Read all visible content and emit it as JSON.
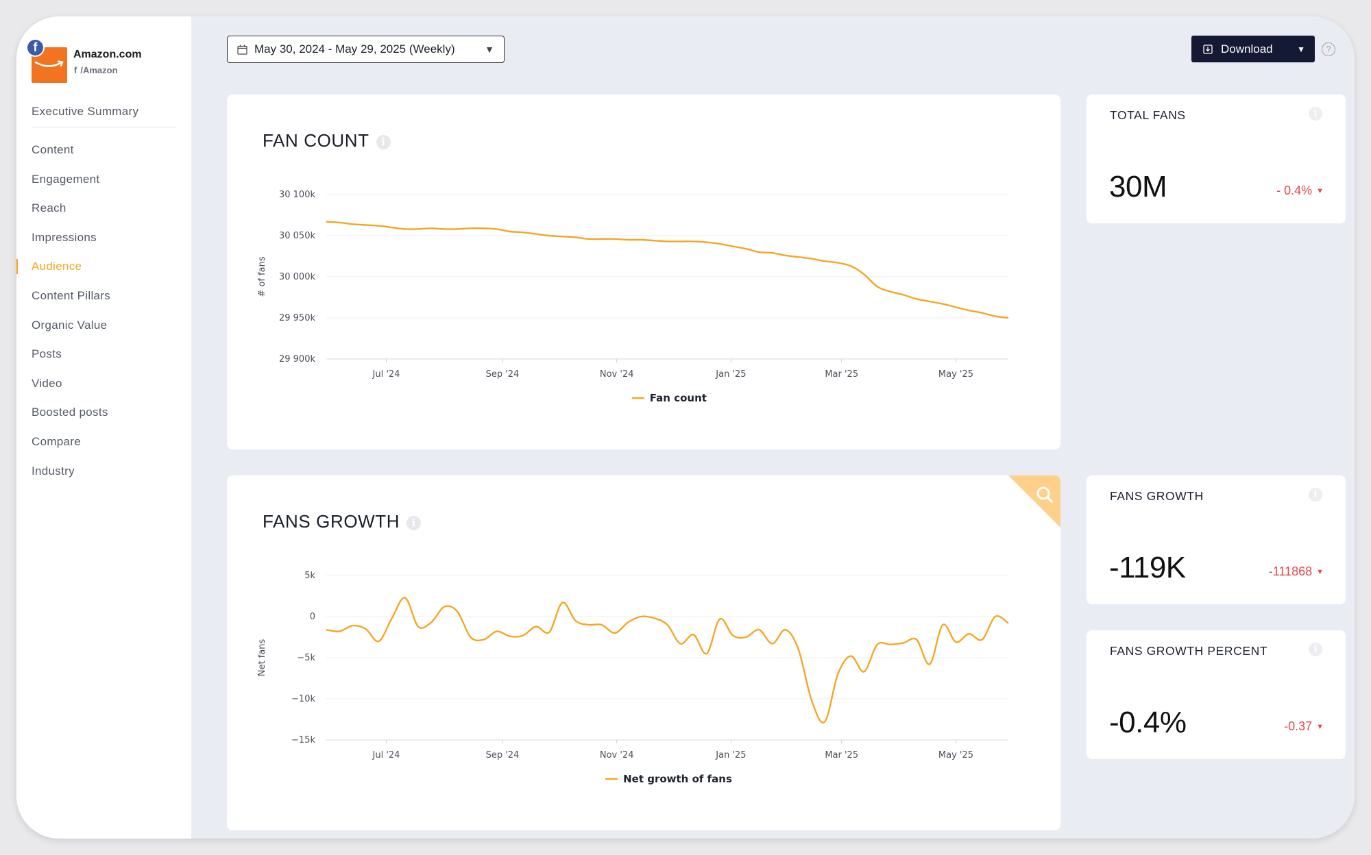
{
  "brand": {
    "name": "Amazon.com",
    "handle": "/Amazon",
    "network_icon": "facebook-icon",
    "logo_icon": "amazon-smile-icon",
    "logo_color": "#f27420"
  },
  "nav": {
    "items": [
      {
        "label": "Executive Summary",
        "active": false
      },
      {
        "label": "Content",
        "active": false
      },
      {
        "label": "Engagement",
        "active": false
      },
      {
        "label": "Reach",
        "active": false
      },
      {
        "label": "Impressions",
        "active": false
      },
      {
        "label": "Audience",
        "active": true
      },
      {
        "label": "Content Pillars",
        "active": false
      },
      {
        "label": "Organic Value",
        "active": false
      },
      {
        "label": "Posts",
        "active": false
      },
      {
        "label": "Video",
        "active": false
      },
      {
        "label": "Boosted posts",
        "active": false
      },
      {
        "label": "Compare",
        "active": false
      },
      {
        "label": "Industry",
        "active": false
      }
    ],
    "active_color": "#f5a623"
  },
  "toolbar": {
    "date_range": "May 30, 2024 - May 29, 2025 (Weekly)",
    "download_label": "Download",
    "help_label": "?"
  },
  "fan_count_card": {
    "title": "FAN COUNT",
    "info": "i"
  },
  "fans_growth_card": {
    "title": "FANS GROWTH",
    "info": "i",
    "corner_icon": "search-icon"
  },
  "stats": [
    {
      "label": "TOTAL FANS",
      "value": "30M",
      "change": "- 0.4%"
    },
    {
      "label": "FANS GROWTH",
      "value": "-119K",
      "change": "-111868"
    },
    {
      "label": "FANS GROWTH PERCENT",
      "value": "-0.4%",
      "change": "-0.37"
    }
  ],
  "colors": {
    "series": "#f5a623",
    "negative": "#e5484d",
    "accent_dark": "#141a33"
  },
  "chart_data": [
    {
      "type": "line",
      "title": "FAN COUNT",
      "ylabel": "# of fans",
      "xlabel": "",
      "ylim": [
        29900000,
        30100000
      ],
      "yticks": [
        30100000,
        30050000,
        30000000,
        29950000,
        29900000
      ],
      "yticklabels": [
        "30 100k",
        "30 050k",
        "30 000k",
        "29 950k",
        "29 900k"
      ],
      "xticklabels": [
        "Jul '24",
        "Sep '24",
        "Nov '24",
        "Jan '25",
        "Mar '25",
        "May '25"
      ],
      "xticks": [
        "2024-07-01",
        "2024-09-01",
        "2024-11-01",
        "2025-01-01",
        "2025-03-01",
        "2025-05-01"
      ],
      "xlim": [
        "2024-05-30",
        "2025-05-29"
      ],
      "grid": true,
      "legend": "bottom-center",
      "series": [
        {
          "name": "Fan count",
          "x": [
            "2024-05-30",
            "2024-06-06",
            "2024-06-13",
            "2024-06-20",
            "2024-06-27",
            "2024-07-04",
            "2024-07-11",
            "2024-07-18",
            "2024-07-25",
            "2024-08-01",
            "2024-08-08",
            "2024-08-15",
            "2024-08-22",
            "2024-08-29",
            "2024-09-05",
            "2024-09-12",
            "2024-09-19",
            "2024-09-26",
            "2024-10-03",
            "2024-10-10",
            "2024-10-17",
            "2024-10-24",
            "2024-10-31",
            "2024-11-07",
            "2024-11-14",
            "2024-11-21",
            "2024-11-28",
            "2024-12-05",
            "2024-12-12",
            "2024-12-19",
            "2024-12-26",
            "2025-01-02",
            "2025-01-09",
            "2025-01-16",
            "2025-01-23",
            "2025-01-30",
            "2025-02-06",
            "2025-02-13",
            "2025-02-20",
            "2025-02-27",
            "2025-03-06",
            "2025-03-13",
            "2025-03-20",
            "2025-03-27",
            "2025-04-03",
            "2025-04-10",
            "2025-04-17",
            "2025-04-24",
            "2025-05-01",
            "2025-05-08",
            "2025-05-15",
            "2025-05-22",
            "2025-05-29"
          ],
          "values": [
            30067000,
            30066000,
            30064000,
            30063000,
            30062000,
            30060000,
            30058000,
            30058000,
            30059000,
            30058000,
            30058000,
            30059000,
            30059000,
            30058000,
            30055000,
            30054000,
            30052000,
            30050000,
            30049000,
            30048000,
            30046000,
            30046000,
            30046000,
            30045000,
            30045000,
            30044000,
            30043000,
            30043000,
            30043000,
            30042000,
            30040000,
            30037000,
            30034000,
            30030000,
            30029000,
            30026000,
            30024000,
            30022000,
            30019000,
            30017000,
            30013000,
            30003000,
            29988000,
            29982000,
            29978000,
            29973000,
            29970000,
            29967000,
            29963000,
            29959000,
            29956000,
            29952000,
            29950000
          ]
        }
      ]
    },
    {
      "type": "line",
      "title": "FANS GROWTH",
      "ylabel": "Net fans",
      "xlabel": "",
      "ylim": [
        -15000,
        5000
      ],
      "yticks": [
        5000,
        0,
        -5000,
        -10000,
        -15000
      ],
      "yticklabels": [
        "5k",
        "0",
        "−5k",
        "−10k",
        "−15k"
      ],
      "xticklabels": [
        "Jul '24",
        "Sep '24",
        "Nov '24",
        "Jan '25",
        "Mar '25",
        "May '25"
      ],
      "xticks": [
        "2024-07-01",
        "2024-09-01",
        "2024-11-01",
        "2025-01-01",
        "2025-03-01",
        "2025-05-01"
      ],
      "xlim": [
        "2024-05-30",
        "2025-05-29"
      ],
      "grid": true,
      "legend": "bottom-center",
      "series": [
        {
          "name": "Net growth of fans",
          "x": [
            "2024-05-30",
            "2024-06-06",
            "2024-06-13",
            "2024-06-20",
            "2024-06-27",
            "2024-07-04",
            "2024-07-11",
            "2024-07-18",
            "2024-07-25",
            "2024-08-01",
            "2024-08-08",
            "2024-08-15",
            "2024-08-22",
            "2024-08-29",
            "2024-09-05",
            "2024-09-12",
            "2024-09-19",
            "2024-09-26",
            "2024-10-03",
            "2024-10-10",
            "2024-10-17",
            "2024-10-24",
            "2024-10-31",
            "2024-11-07",
            "2024-11-14",
            "2024-11-21",
            "2024-11-28",
            "2024-12-05",
            "2024-12-12",
            "2024-12-19",
            "2024-12-26",
            "2025-01-02",
            "2025-01-09",
            "2025-01-16",
            "2025-01-23",
            "2025-01-30",
            "2025-02-06",
            "2025-02-13",
            "2025-02-20",
            "2025-02-27",
            "2025-03-06",
            "2025-03-13",
            "2025-03-20",
            "2025-03-27",
            "2025-04-03",
            "2025-04-10",
            "2025-04-17",
            "2025-04-24",
            "2025-05-01",
            "2025-05-08",
            "2025-05-15",
            "2025-05-22",
            "2025-05-29"
          ],
          "values": [
            -1600,
            -1800,
            -1100,
            -1500,
            -3000,
            -200,
            2300,
            -1200,
            -700,
            1200,
            600,
            -2500,
            -2800,
            -1800,
            -2400,
            -2300,
            -1200,
            -1900,
            1700,
            -500,
            -1000,
            -1000,
            -2000,
            -700,
            0,
            -200,
            -1000,
            -3300,
            -2200,
            -4500,
            -300,
            -2300,
            -2500,
            -1600,
            -3300,
            -1600,
            -4000,
            -10200,
            -12800,
            -7000,
            -4800,
            -6700,
            -3400,
            -3400,
            -3200,
            -2800,
            -5800,
            -1000,
            -3100,
            -2100,
            -2800,
            0,
            -800
          ]
        }
      ]
    }
  ]
}
